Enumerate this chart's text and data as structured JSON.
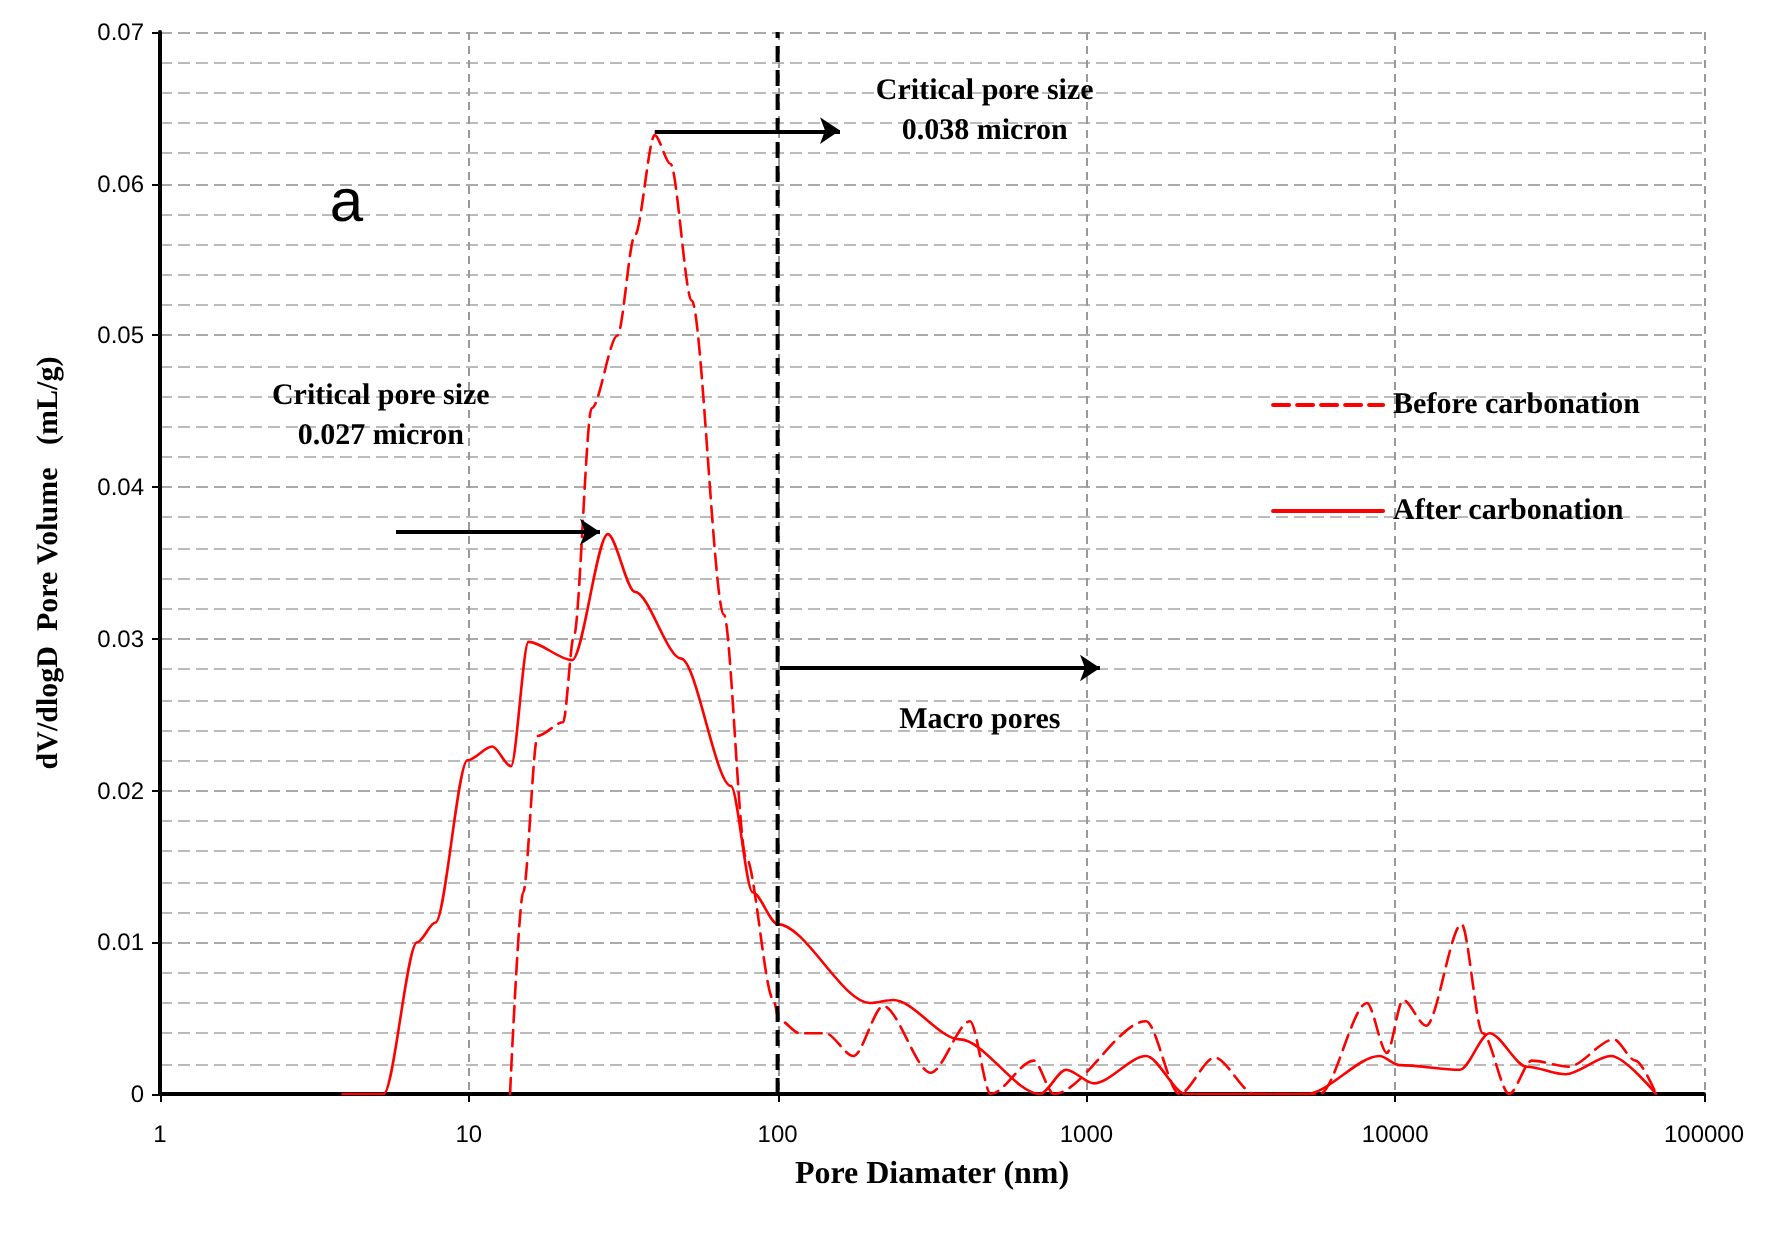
{
  "chart_data": {
    "type": "line",
    "xlabel": "Pore Diamater (nm)",
    "ylabel": "dV/dlogD  Pore Volume   (mL/g)",
    "log": "x",
    "xlim": [
      1,
      100000
    ],
    "xticks": [
      1,
      10,
      100,
      1000,
      10000,
      100000
    ],
    "ylim": [
      0,
      0.07
    ],
    "yticks": [
      0,
      0.01,
      0.02,
      0.03,
      0.04,
      0.05,
      0.06,
      0.07
    ],
    "grid": true,
    "legend": "right",
    "marker": "none",
    "series": [
      {
        "name": "Before carbonation",
        "color": "#ff0000",
        "line_style": "dashed",
        "x": [
          13.6,
          15,
          16.7,
          20.2,
          21.9,
          25,
          30.3,
          34.5,
          40,
          45,
          52.7,
          67,
          79,
          97,
          101,
          118,
          143,
          176,
          220,
          313,
          420,
          490,
          675,
          785,
          1560,
          2000,
          2600,
          3500,
          5700,
          8100,
          9400,
          10600,
          12600,
          16400,
          19200,
          23400,
          27700,
          36500,
          51000,
          60000,
          70000
        ],
        "values": [
          0,
          0.0133,
          0.0236,
          0.0245,
          0.0302,
          0.0452,
          0.05,
          0.0566,
          0.0632,
          0.0613,
          0.0523,
          0.0316,
          0.0156,
          0.0062,
          0.0049,
          0.004,
          0.004,
          0.0025,
          0.0058,
          0.0014,
          0.0048,
          0,
          0.0022,
          0,
          0.0048,
          0,
          0.0024,
          0,
          0,
          0.006,
          0.0027,
          0.0062,
          0.0045,
          0.0112,
          0.004,
          0,
          0.0022,
          0.0018,
          0.0036,
          0.0022,
          0
        ]
      },
      {
        "name": "After carbonation",
        "color": "#ff0000",
        "line_style": "solid",
        "x": [
          3.9,
          5.3,
          6.8,
          7.8,
          9.9,
          11.9,
          13.7,
          15.6,
          21.6,
          28.2,
          34.5,
          48.7,
          70.6,
          83,
          100,
          199,
          237,
          389,
          707,
          860,
          1057,
          1560,
          2100,
          5150,
          8900,
          10330,
          16200,
          20200,
          26700,
          35600,
          50000,
          70000
        ],
        "values": [
          0,
          0,
          0.01,
          0.0113,
          0.022,
          0.0229,
          0.0216,
          0.0298,
          0.0286,
          0.0369,
          0.0331,
          0.0287,
          0.0203,
          0.0133,
          0.0112,
          0.006,
          0.0062,
          0.0036,
          0,
          0.0016,
          0.0007,
          0.0025,
          0,
          0,
          0.0025,
          0.0019,
          0.0016,
          0.004,
          0.0018,
          0.0013,
          0.0025,
          0
        ]
      }
    ],
    "ref_lines": [
      {
        "axis": "x",
        "value": 100,
        "color": "#000000",
        "line_style": "dashed"
      }
    ],
    "annotations": [
      "a",
      {
        "text": "Critical pore size\n0.038 micron",
        "x": 40,
        "y": 0.0635
      },
      "Critical pore size\n0.027 micron",
      "Macro pores"
    ]
  }
}
